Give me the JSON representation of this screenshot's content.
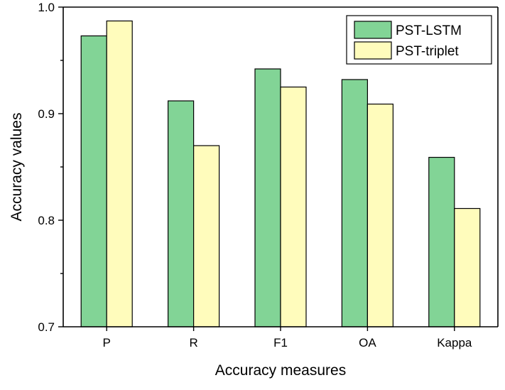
{
  "chart_data": {
    "type": "bar",
    "title": "",
    "xlabel": "Accuracy measures",
    "ylabel": "Accuracy values",
    "categories": [
      "P",
      "R",
      "F1",
      "OA",
      "Kappa"
    ],
    "ylim": [
      0.7,
      1.0
    ],
    "yticks": [
      0.7,
      0.8,
      0.9,
      1.0
    ],
    "ytick_labels": [
      "0.7",
      "0.8",
      "0.9",
      "1.0"
    ],
    "legend_position": "top-right",
    "series": [
      {
        "name": "PST-LSTM",
        "color": "#82d496",
        "values": [
          0.973,
          0.912,
          0.942,
          0.932,
          0.859
        ]
      },
      {
        "name": "PST-triplet",
        "color": "#fffcbc",
        "values": [
          0.987,
          0.87,
          0.925,
          0.909,
          0.811
        ]
      }
    ]
  }
}
